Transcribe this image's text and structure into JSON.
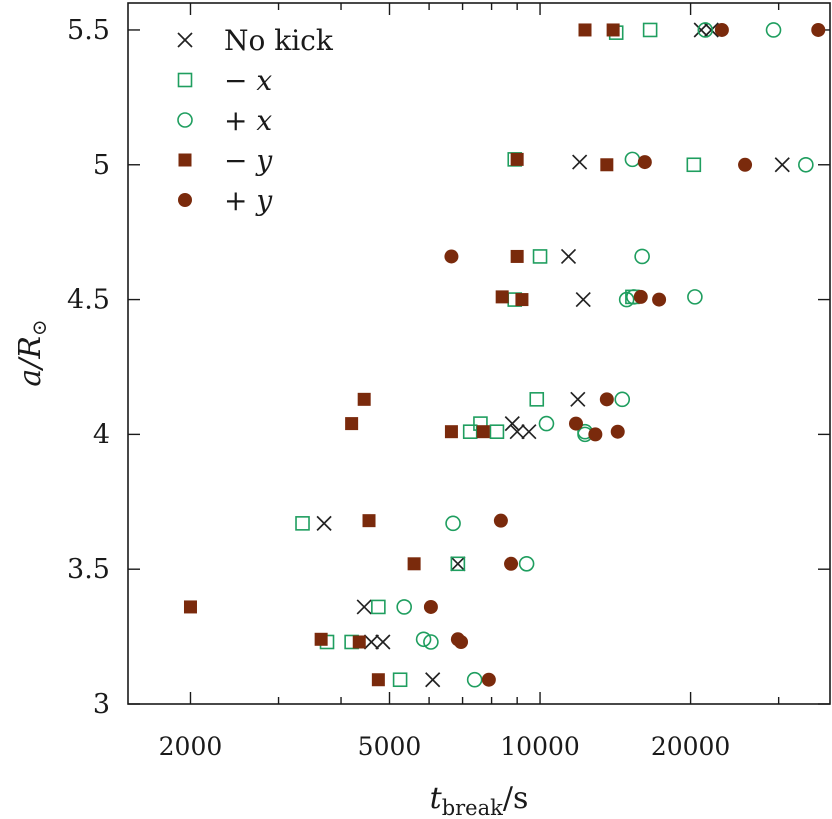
{
  "chart_data": {
    "type": "scatter",
    "xscale": "log",
    "xlim": [
      1500,
      38000
    ],
    "ylim": [
      3.0,
      5.6
    ],
    "xlabel": {
      "main": "t",
      "sub": "break",
      "rest": "/s"
    },
    "ylabel": {
      "main": "a/R",
      "sub": "⊙"
    },
    "x_ticks_major": [
      2000,
      5000,
      10000,
      20000
    ],
    "x_ticks_labels": [
      "2000",
      "5000",
      "10000",
      "20000"
    ],
    "x_ticks_minor": [
      3000,
      4000,
      6000,
      7000,
      8000,
      9000,
      30000
    ],
    "y_ticks": [
      3,
      3.5,
      4,
      4.5,
      5,
      5.5
    ],
    "y_ticks_labels": [
      "3",
      "3.5",
      "4",
      "4.5",
      "5",
      "5.5"
    ],
    "legend_position": "top-left",
    "colors": {
      "green": "#1f9e5f",
      "brown": "#7a2a0c",
      "black": "#222222"
    },
    "series": [
      {
        "name": "No kick",
        "marker": "cross",
        "color": "#222222",
        "points": [
          [
            6100,
            3.09
          ],
          [
            4600,
            3.23
          ],
          [
            4850,
            3.23
          ],
          [
            4450,
            3.36
          ],
          [
            6850,
            3.52
          ],
          [
            3700,
            3.67
          ],
          [
            8800,
            4.04
          ],
          [
            9000,
            4.01
          ],
          [
            9500,
            4.01
          ],
          [
            11900,
            4.13
          ],
          [
            12200,
            4.5
          ],
          [
            11400,
            4.66
          ],
          [
            12000,
            5.01
          ],
          [
            30500,
            5.0
          ],
          [
            21000,
            5.5
          ],
          [
            22000,
            5.5
          ]
        ]
      },
      {
        "name": "−x",
        "marker": "square-open",
        "color": "#1f9e5f",
        "points": [
          [
            5250,
            3.09
          ],
          [
            3750,
            3.23
          ],
          [
            4200,
            3.23
          ],
          [
            4750,
            3.36
          ],
          [
            6850,
            3.52
          ],
          [
            3350,
            3.67
          ],
          [
            7250,
            4.01
          ],
          [
            7600,
            4.04
          ],
          [
            8200,
            4.01
          ],
          [
            9850,
            4.13
          ],
          [
            8900,
            4.5
          ],
          [
            15300,
            4.51
          ],
          [
            10000,
            4.66
          ],
          [
            8900,
            5.02
          ],
          [
            20300,
            5.0
          ],
          [
            14200,
            5.49
          ],
          [
            16600,
            5.5
          ]
        ]
      },
      {
        "name": "+x",
        "marker": "circle-open",
        "color": "#1f9e5f",
        "points": [
          [
            7400,
            3.09
          ],
          [
            5850,
            3.24
          ],
          [
            6050,
            3.23
          ],
          [
            5350,
            3.36
          ],
          [
            9400,
            3.52
          ],
          [
            6700,
            3.67
          ],
          [
            10300,
            4.04
          ],
          [
            12300,
            4.01
          ],
          [
            12300,
            4.0
          ],
          [
            14600,
            4.13
          ],
          [
            14900,
            4.5
          ],
          [
            15400,
            4.51
          ],
          [
            20400,
            4.51
          ],
          [
            16000,
            4.66
          ],
          [
            15300,
            5.02
          ],
          [
            34000,
            5.0
          ],
          [
            21400,
            5.5
          ],
          [
            29300,
            5.5
          ]
        ]
      },
      {
        "name": "−y",
        "marker": "square-filled",
        "color": "#7a2a0c",
        "points": [
          [
            4750,
            3.09
          ],
          [
            3650,
            3.24
          ],
          [
            4350,
            3.23
          ],
          [
            2000,
            3.36
          ],
          [
            5600,
            3.52
          ],
          [
            4550,
            3.68
          ],
          [
            4200,
            4.04
          ],
          [
            4450,
            4.13
          ],
          [
            6650,
            4.01
          ],
          [
            7700,
            4.01
          ],
          [
            8400,
            4.51
          ],
          [
            9200,
            4.5
          ],
          [
            9000,
            4.66
          ],
          [
            9000,
            5.02
          ],
          [
            13600,
            5.0
          ],
          [
            12300,
            5.5
          ],
          [
            14000,
            5.5
          ]
        ]
      },
      {
        "name": "+y",
        "marker": "circle-filled",
        "color": "#7a2a0c",
        "points": [
          [
            7900,
            3.09
          ],
          [
            6850,
            3.24
          ],
          [
            6950,
            3.23
          ],
          [
            6050,
            3.36
          ],
          [
            8750,
            3.52
          ],
          [
            8350,
            3.68
          ],
          [
            11800,
            4.04
          ],
          [
            12900,
            4.0
          ],
          [
            13600,
            4.13
          ],
          [
            14300,
            4.01
          ],
          [
            15900,
            4.51
          ],
          [
            17300,
            4.5
          ],
          [
            6650,
            4.66
          ],
          [
            16200,
            5.01
          ],
          [
            25700,
            5.0
          ],
          [
            23100,
            5.5
          ],
          [
            36000,
            5.5
          ]
        ]
      }
    ]
  }
}
